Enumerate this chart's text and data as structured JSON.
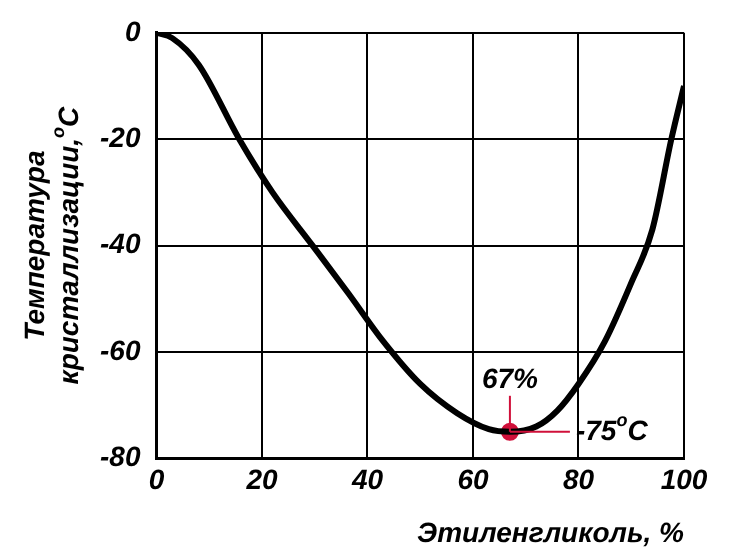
{
  "chart_data": {
    "type": "line",
    "xlabel": "Этиленгликоль, %",
    "ylabel": "Температура\nкристаллизации,$^{o}$C",
    "xlim": [
      0,
      100
    ],
    "xticks": [
      0,
      20,
      40,
      60,
      80,
      100
    ],
    "ylim": [
      -80,
      0
    ],
    "yticks": [
      -80,
      -60,
      -40,
      -20,
      0
    ],
    "grid": true,
    "legend": false,
    "series": [
      {
        "color": "#000000",
        "marker": "none",
        "x": [
          0,
          3,
          8,
          15.7,
          22,
          29.6,
          36.4,
          43,
          50,
          57,
          63,
          67,
          72,
          76,
          80,
          85,
          90,
          94,
          97.6,
          100
        ],
        "values": [
          0,
          -1,
          -6,
          -20,
          -30,
          -40,
          -49,
          -58,
          -66,
          -71.5,
          -74.5,
          -75,
          -74,
          -71,
          -66,
          -58,
          -47,
          -37,
          -20,
          -10
        ]
      },
      {
        "type": "scatter",
        "color": "#d0103a",
        "marker": "circle",
        "x": [
          67
        ],
        "values": [
          -75
        ]
      }
    ],
    "annotations": [
      {
        "text": "67%",
        "x": 67,
        "y": -75
      },
      {
        "text": "-75$^{o}$C",
        "x": 67,
        "y": -75
      }
    ]
  }
}
